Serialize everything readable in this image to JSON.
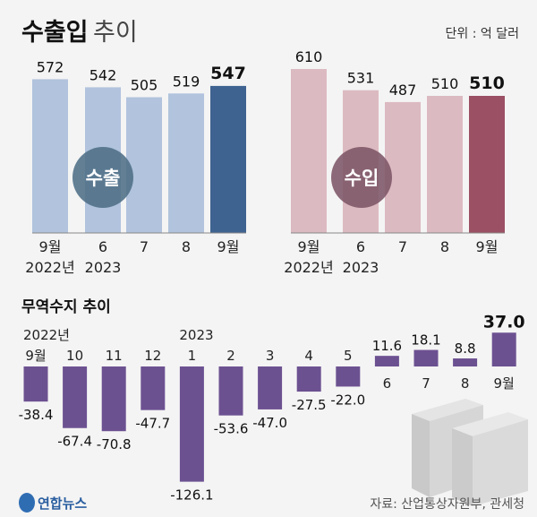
{
  "header": {
    "title_bold": "수출입",
    "title_light": "추이",
    "unit": "단위 : 억 달러"
  },
  "chart_data": [
    {
      "type": "bar",
      "label": "수출",
      "categories": [
        "9월",
        "6",
        "7",
        "8",
        "9월"
      ],
      "year_labels": [
        "2022년",
        "2023",
        "",
        "",
        ""
      ],
      "values": [
        572,
        542,
        505,
        519,
        547
      ],
      "highlight_index": 4,
      "colors": {
        "bar": "#b1c3dd",
        "highlight": "#3f6391",
        "badge": "#4d6e86"
      }
    },
    {
      "type": "bar",
      "label": "수입",
      "categories": [
        "9월",
        "6",
        "7",
        "8",
        "9월"
      ],
      "year_labels": [
        "2022년",
        "2023",
        "",
        "",
        ""
      ],
      "values": [
        610,
        531,
        487,
        510,
        510
      ],
      "highlight_index": 4,
      "colors": {
        "bar": "#dcbac1",
        "highlight": "#9b5064",
        "badge": "#7d5567"
      }
    },
    {
      "type": "bar",
      "title": "무역수지 추이",
      "categories": [
        "9월",
        "10",
        "11",
        "12",
        "1",
        "2",
        "3",
        "4",
        "5",
        "6",
        "7",
        "8",
        "9월"
      ],
      "year_labels": {
        "0": "2022년",
        "4": "2023"
      },
      "values": [
        -38.4,
        -67.4,
        -70.8,
        -47.7,
        -126.1,
        -53.6,
        -47.0,
        -27.5,
        -22.0,
        11.6,
        18.1,
        8.8,
        37.0
      ],
      "value_labels": [
        "-38.4",
        "-67.4",
        "-70.8",
        "-47.7",
        "-126.1",
        "-53.6",
        "-47.0",
        "-27.5",
        "-22.0",
        "11.6",
        "18.1",
        "8.8",
        "37.0"
      ],
      "highlight_index": 12,
      "colors": {
        "bar": "#6c5191"
      }
    }
  ],
  "footer": {
    "logo": "연합뉴스",
    "source": "자료: 산업통상자원부, 관세청"
  }
}
